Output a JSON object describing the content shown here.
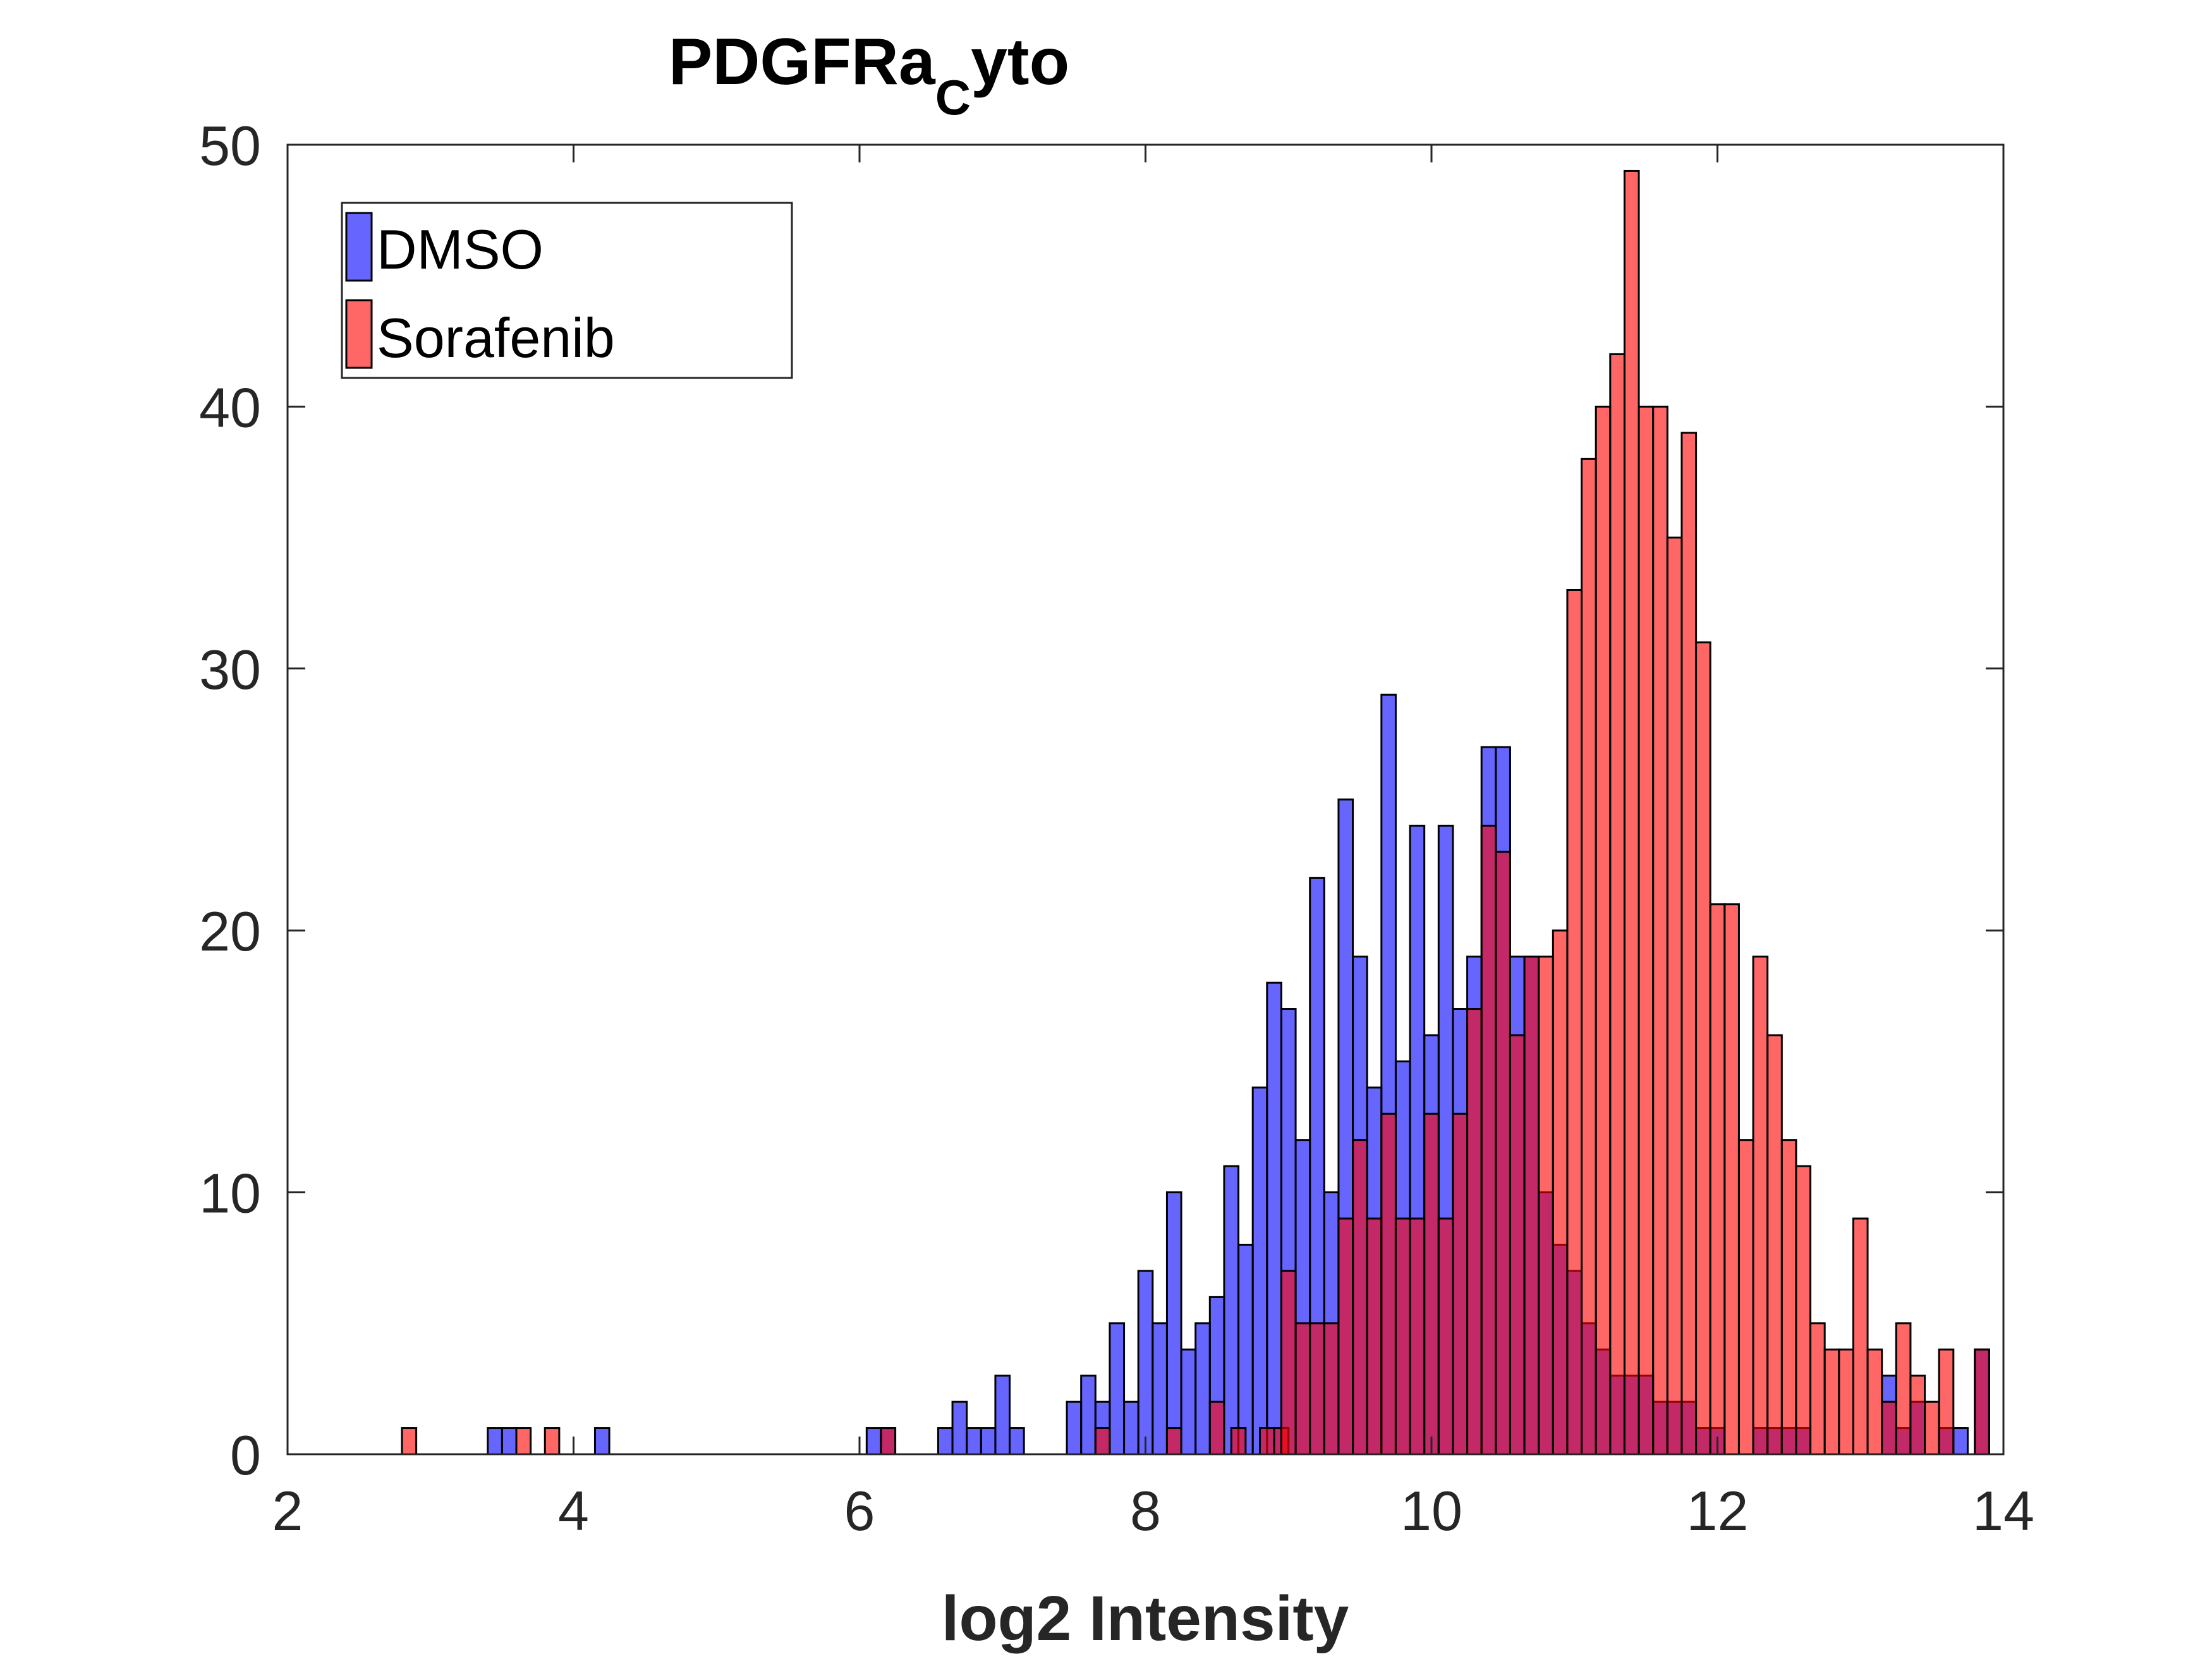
{
  "chart_data": {
    "type": "histogram",
    "title": {
      "main": "PDGFRa",
      "subscript": "C",
      "suffix": "yto"
    },
    "xlabel": "log2 Intensity",
    "ylabel": "",
    "xlim": [
      2,
      14
    ],
    "ylim": [
      0,
      50
    ],
    "xticks": [
      2,
      4,
      6,
      8,
      10,
      12,
      14
    ],
    "yticks": [
      0,
      10,
      20,
      30,
      40,
      50
    ],
    "bin_width": 0.1,
    "legend_position": "top-left",
    "series": [
      {
        "name": "DMSO",
        "color": "#0000ff",
        "bins": [
          [
            3.45,
            1
          ],
          [
            3.55,
            1
          ],
          [
            4.2,
            1
          ],
          [
            6.1,
            1
          ],
          [
            6.2,
            1
          ],
          [
            6.6,
            1
          ],
          [
            6.7,
            2
          ],
          [
            6.8,
            1
          ],
          [
            6.9,
            1
          ],
          [
            7.0,
            3
          ],
          [
            7.1,
            1
          ],
          [
            7.5,
            2
          ],
          [
            7.6,
            3
          ],
          [
            7.7,
            2
          ],
          [
            7.8,
            5
          ],
          [
            7.9,
            2
          ],
          [
            8.0,
            7
          ],
          [
            8.1,
            5
          ],
          [
            8.2,
            10
          ],
          [
            8.3,
            4
          ],
          [
            8.4,
            5
          ],
          [
            8.5,
            6
          ],
          [
            8.6,
            11
          ],
          [
            8.7,
            8
          ],
          [
            8.8,
            14
          ],
          [
            8.9,
            18
          ],
          [
            9.0,
            17
          ],
          [
            9.1,
            12
          ],
          [
            9.2,
            22
          ],
          [
            9.3,
            10
          ],
          [
            9.4,
            25
          ],
          [
            9.5,
            19
          ],
          [
            9.6,
            14
          ],
          [
            9.7,
            29
          ],
          [
            9.8,
            15
          ],
          [
            9.9,
            24
          ],
          [
            10.0,
            16
          ],
          [
            10.1,
            24
          ],
          [
            10.2,
            17
          ],
          [
            10.3,
            19
          ],
          [
            10.4,
            27
          ],
          [
            10.5,
            27
          ],
          [
            10.6,
            19
          ],
          [
            10.7,
            19
          ],
          [
            10.8,
            10
          ],
          [
            10.9,
            8
          ],
          [
            11.0,
            7
          ],
          [
            11.1,
            5
          ],
          [
            11.2,
            4
          ],
          [
            11.3,
            3
          ],
          [
            11.4,
            3
          ],
          [
            11.5,
            3
          ],
          [
            11.6,
            2
          ],
          [
            11.7,
            2
          ],
          [
            11.8,
            2
          ],
          [
            11.9,
            1
          ],
          [
            12.0,
            1
          ],
          [
            12.3,
            1
          ],
          [
            12.4,
            1
          ],
          [
            12.5,
            1
          ],
          [
            12.6,
            1
          ],
          [
            13.2,
            3
          ],
          [
            13.3,
            1
          ],
          [
            13.4,
            2
          ],
          [
            13.6,
            1
          ],
          [
            13.7,
            1
          ],
          [
            13.85,
            4
          ]
        ]
      },
      {
        "name": "Sorafenib",
        "color": "#ff0000",
        "bins": [
          [
            2.85,
            1
          ],
          [
            3.65,
            1
          ],
          [
            3.85,
            1
          ],
          [
            6.2,
            1
          ],
          [
            7.7,
            1
          ],
          [
            8.2,
            1
          ],
          [
            8.5,
            2
          ],
          [
            8.65,
            1
          ],
          [
            8.85,
            1
          ],
          [
            8.95,
            1
          ],
          [
            9.0,
            7
          ],
          [
            9.1,
            5
          ],
          [
            9.2,
            5
          ],
          [
            9.3,
            5
          ],
          [
            9.4,
            9
          ],
          [
            9.5,
            12
          ],
          [
            9.6,
            9
          ],
          [
            9.7,
            13
          ],
          [
            9.8,
            9
          ],
          [
            9.9,
            9
          ],
          [
            10.0,
            13
          ],
          [
            10.1,
            9
          ],
          [
            10.2,
            13
          ],
          [
            10.3,
            17
          ],
          [
            10.4,
            24
          ],
          [
            10.5,
            23
          ],
          [
            10.6,
            16
          ],
          [
            10.7,
            19
          ],
          [
            10.8,
            19
          ],
          [
            10.9,
            20
          ],
          [
            11.0,
            33
          ],
          [
            11.1,
            38
          ],
          [
            11.2,
            40
          ],
          [
            11.3,
            42
          ],
          [
            11.4,
            49
          ],
          [
            11.5,
            40
          ],
          [
            11.6,
            40
          ],
          [
            11.7,
            35
          ],
          [
            11.8,
            39
          ],
          [
            11.9,
            31
          ],
          [
            12.0,
            21
          ],
          [
            12.1,
            21
          ],
          [
            12.2,
            12
          ],
          [
            12.3,
            19
          ],
          [
            12.4,
            16
          ],
          [
            12.5,
            12
          ],
          [
            12.6,
            11
          ],
          [
            12.7,
            5
          ],
          [
            12.8,
            4
          ],
          [
            12.9,
            4
          ],
          [
            13.0,
            9
          ],
          [
            13.1,
            4
          ],
          [
            13.2,
            2
          ],
          [
            13.3,
            5
          ],
          [
            13.4,
            3
          ],
          [
            13.5,
            2
          ],
          [
            13.6,
            4
          ],
          [
            13.85,
            4
          ]
        ]
      }
    ]
  }
}
